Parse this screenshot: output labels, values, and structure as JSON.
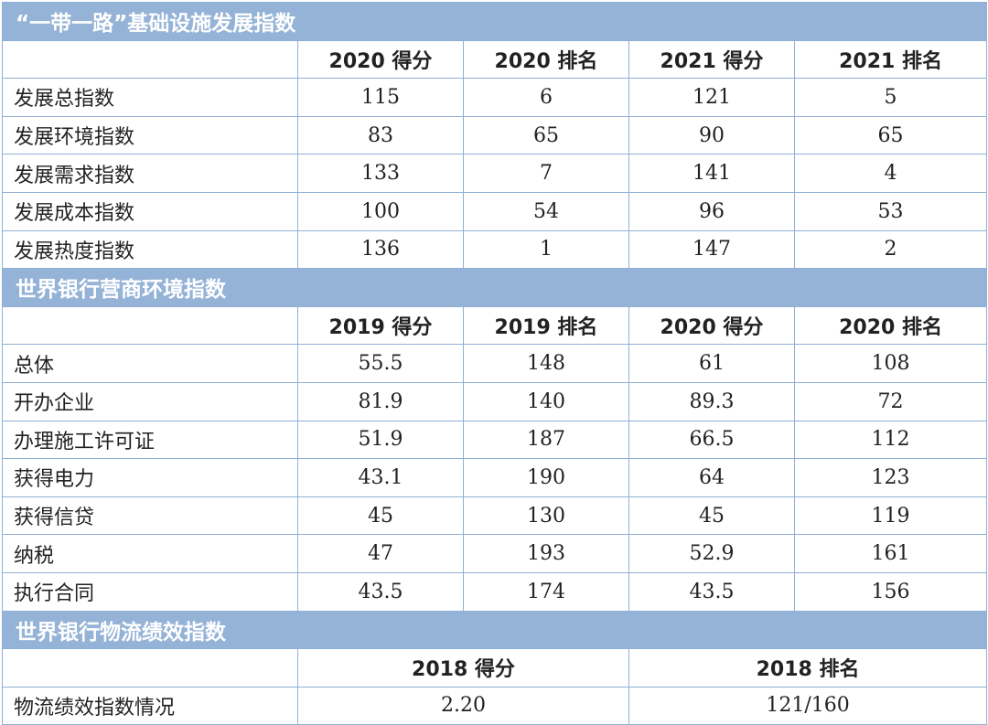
{
  "sections": [
    {
      "title": "“一带一路”基础设施发展指数",
      "headers": [
        "2020 得分",
        "2020 排名",
        "2021 得分",
        "2021 排名"
      ],
      "rows": [
        {
          "label": "发展总指数",
          "values": [
            "115",
            "6",
            "121",
            "5"
          ]
        },
        {
          "label": "发展环境指数",
          "values": [
            "83",
            "65",
            "90",
            "65"
          ]
        },
        {
          "label": "发展需求指数",
          "values": [
            "133",
            "7",
            "141",
            "4"
          ]
        },
        {
          "label": "发展成本指数",
          "values": [
            "100",
            "54",
            "96",
            "53"
          ]
        },
        {
          "label": "发展热度指数",
          "values": [
            "136",
            "1",
            "147",
            "2"
          ]
        }
      ]
    },
    {
      "title": "世界银行营商环境指数",
      "headers": [
        "2019 得分",
        "2019 排名",
        "2020 得分",
        "2020 排名"
      ],
      "rows": [
        {
          "label": "总体",
          "values": [
            "55.5",
            "148",
            "61",
            "108"
          ]
        },
        {
          "label": "开办企业",
          "values": [
            "81.9",
            "140",
            "89.3",
            "72"
          ]
        },
        {
          "label": "办理施工许可证",
          "values": [
            "51.9",
            "187",
            "66.5",
            "112"
          ]
        },
        {
          "label": "获得电力",
          "values": [
            "43.1",
            "190",
            "64",
            "123"
          ]
        },
        {
          "label": "获得信贷",
          "values": [
            "45",
            "130",
            "45",
            "119"
          ]
        },
        {
          "label": "纳税",
          "values": [
            "47",
            "193",
            "52.9",
            "161"
          ]
        },
        {
          "label": "执行合同",
          "values": [
            "43.5",
            "174",
            "43.5",
            "156"
          ]
        }
      ]
    },
    {
      "title": "世界银行物流绩效指数",
      "headers": [
        "2018 得分",
        "2018 排名"
      ],
      "rows": [
        {
          "label": "物流绩效指数情况",
          "values": [
            "2.20",
            "121/160"
          ]
        }
      ]
    }
  ],
  "colors": {
    "section_header_bg": "#95b3d7",
    "border": "#8fb0d6"
  }
}
